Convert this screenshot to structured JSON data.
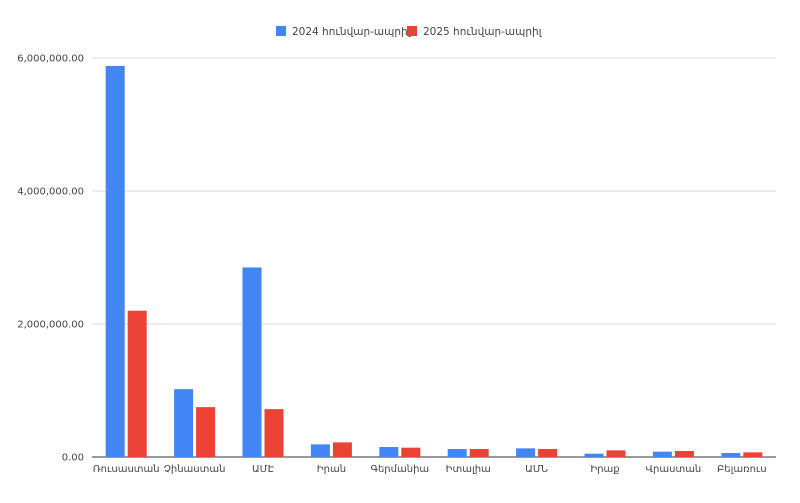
{
  "chart_data": {
    "type": "bar",
    "categories": [
      "Ռուսաստան",
      "Չինաստան",
      "ԱՄԷ",
      "Իրան",
      "Գերմանիա",
      "Իտալիա",
      "ԱՄՆ",
      "Իրաք",
      "Վրաստան",
      "Բելառուս"
    ],
    "series": [
      {
        "name": "2024 հունվար-ապրիլ",
        "color": "#4285f4",
        "values": [
          5880000,
          1020000,
          2850000,
          190000,
          150000,
          120000,
          130000,
          50000,
          80000,
          60000
        ]
      },
      {
        "name": "2025 հունվար-ապրիլ",
        "color": "#ea4335",
        "values": [
          2200000,
          750000,
          720000,
          220000,
          140000,
          120000,
          120000,
          100000,
          90000,
          70000
        ]
      }
    ],
    "title": "",
    "xlabel": "",
    "ylabel": "",
    "ylim": [
      0,
      6000000
    ],
    "yticks": [
      0,
      2000000,
      4000000,
      6000000
    ],
    "ytick_labels": [
      "0.00",
      "2,000,000.00",
      "4,000,000.00",
      "6,000,000.00"
    ],
    "grid": true,
    "legend_position": "top"
  }
}
